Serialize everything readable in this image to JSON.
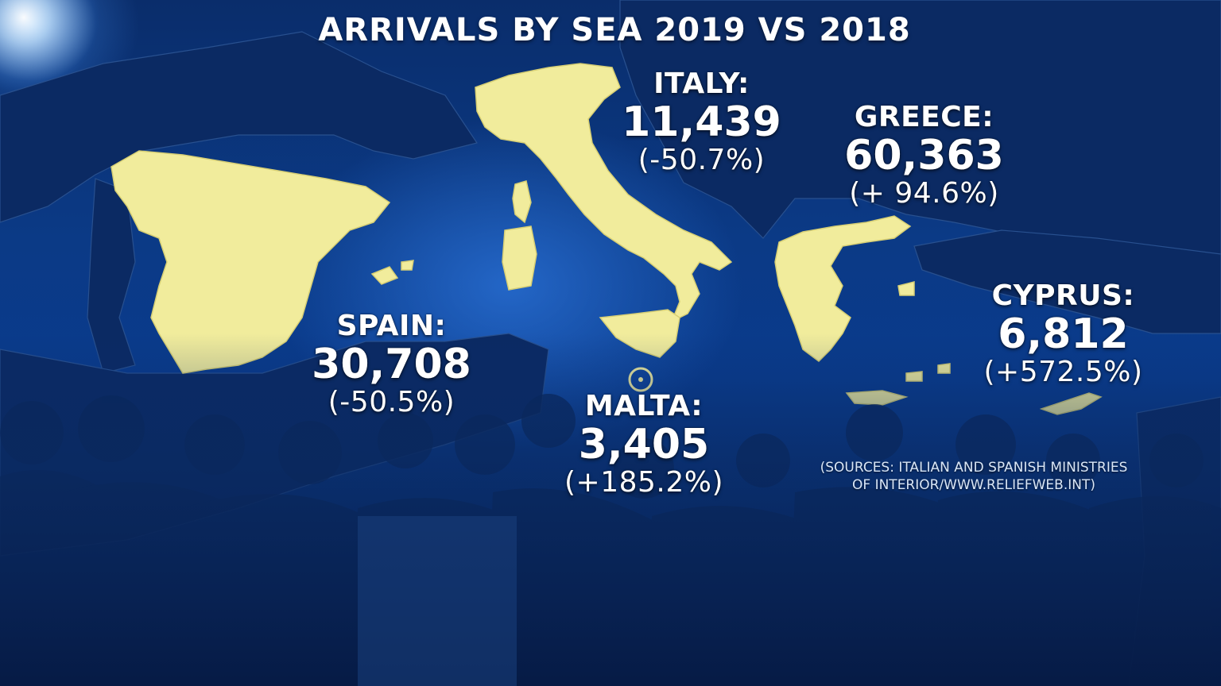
{
  "title": "ARRIVALS BY SEA 2019 VS 2018",
  "countries": [
    {
      "id": "italy",
      "name": "ITALY:",
      "arrivals": "11,439",
      "change": "(-50.7%)"
    },
    {
      "id": "greece",
      "name": "GREECE:",
      "arrivals": "60,363",
      "change": "(+ 94.6%)"
    },
    {
      "id": "spain",
      "name": "SPAIN:",
      "arrivals": "30,708",
      "change": "(-50.5%)"
    },
    {
      "id": "malta",
      "name": "MALTA:",
      "arrivals": "3,405",
      "change": "(+185.2%)"
    },
    {
      "id": "cyprus",
      "name": "CYPRUS:",
      "arrivals": "6,812",
      "change": "(+572.5%)"
    }
  ],
  "source": {
    "line1": "(SOURCES: ITALIAN AND SPANISH MINISTRIES",
    "line2": "OF INTERIOR/WWW.RELIEFWEB.INT)"
  },
  "colors": {
    "highlight_land": "#f1ec9c",
    "background_sea": "#0a3b8c",
    "text": "#ffffff"
  }
}
